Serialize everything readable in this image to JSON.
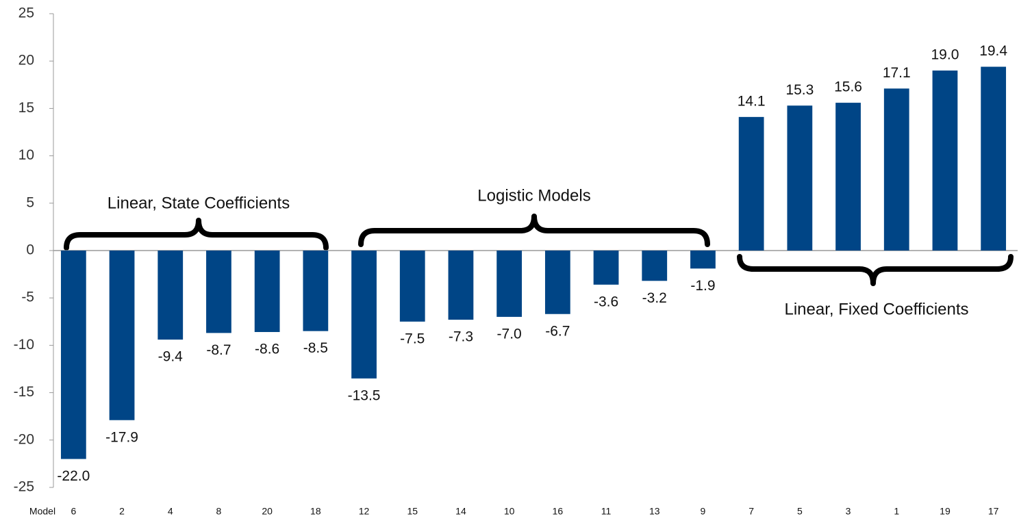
{
  "chart_data": {
    "type": "bar",
    "xlabel": "Model",
    "categories": [
      "6",
      "2",
      "4",
      "8",
      "20",
      "18",
      "12",
      "15",
      "14",
      "10",
      "16",
      "11",
      "13",
      "9",
      "7",
      "5",
      "3",
      "1",
      "19",
      "17"
    ],
    "values": [
      -22.0,
      -17.9,
      -9.4,
      -8.7,
      -8.6,
      -8.5,
      -13.5,
      -7.5,
      -7.3,
      -7.0,
      -6.7,
      -3.6,
      -3.2,
      -1.9,
      14.1,
      15.3,
      15.6,
      17.1,
      19.0,
      19.4
    ],
    "value_labels": [
      "-22.0",
      "-17.9",
      "-9.4",
      "-8.7",
      "-8.6",
      "-8.5",
      "-13.5",
      "-7.5",
      "-7.3",
      "-7.0",
      "-6.7",
      "-3.6",
      "-3.2",
      "-1.9",
      "14.1",
      "15.3",
      "15.6",
      "17.1",
      "19.0",
      "19.4"
    ],
    "color": "#004586",
    "ylim": [
      -25,
      25
    ],
    "yticks": [
      -25,
      -20,
      -15,
      -10,
      -5,
      0,
      5,
      10,
      15,
      20,
      25
    ],
    "grid": false,
    "annotations": [
      "Linear, State Coefficients",
      "Logistic Models",
      "Linear, Fixed Coefficients"
    ]
  }
}
